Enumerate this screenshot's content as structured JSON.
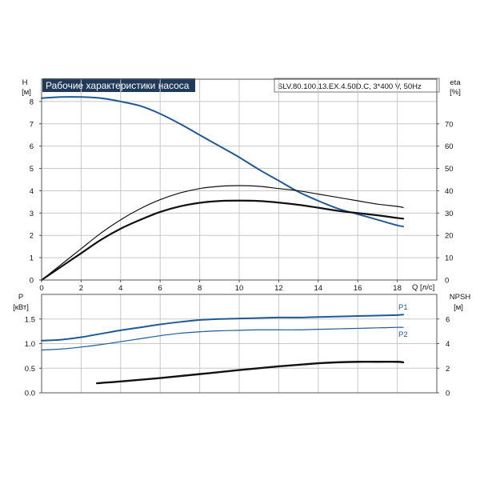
{
  "chart_data": {
    "type": "line",
    "title": "Рабочие характеристики насоса",
    "model": "SLV.80.100.13.EX.4.50D.C, 3*400 V, 50Hz",
    "colors": {
      "title_bg": "#1f3a5a",
      "blue": "#1f5a96",
      "black": "#111111",
      "grid": "#c8c8c8",
      "axis": "#555555"
    },
    "x_axis": {
      "label": "Q [л/с]",
      "range": [
        0,
        20
      ],
      "ticks": [
        0,
        2,
        4,
        6,
        8,
        10,
        12,
        14,
        16,
        18
      ]
    },
    "top_panel": {
      "left_axis": {
        "label": "H",
        "unit": "[м]",
        "range": [
          0,
          9
        ],
        "ticks": [
          0,
          1,
          2,
          3,
          4,
          5,
          6,
          7,
          8
        ]
      },
      "right_axis": {
        "label": "eta",
        "unit": "[%]",
        "range": [
          0,
          90
        ],
        "ticks": [
          10,
          20,
          30,
          40,
          50,
          60,
          70
        ]
      },
      "series": [
        {
          "axis": "left",
          "color": "blue",
          "width": 2,
          "x": [
            0,
            1,
            2,
            3,
            4,
            5,
            6,
            7,
            8,
            9,
            10,
            11,
            12,
            13,
            14,
            15,
            16,
            17,
            18,
            18.3
          ],
          "y": [
            8.15,
            8.2,
            8.2,
            8.15,
            8.0,
            7.8,
            7.45,
            7.0,
            6.5,
            6.0,
            5.5,
            4.95,
            4.45,
            3.95,
            3.55,
            3.2,
            2.95,
            2.7,
            2.45,
            2.4
          ]
        },
        {
          "axis": "right",
          "color": "black",
          "width": 1.2,
          "x": [
            0,
            1,
            2,
            3,
            4,
            5,
            6,
            7,
            8,
            9,
            10,
            11,
            12,
            13,
            14,
            15,
            16,
            17,
            18,
            18.3
          ],
          "y": [
            0,
            7,
            14,
            21,
            27,
            32,
            36,
            39,
            41,
            42,
            42.3,
            42,
            41,
            40,
            38.5,
            37,
            35.5,
            34,
            33,
            32.5
          ]
        },
        {
          "axis": "right",
          "color": "black",
          "width": 2.2,
          "x": [
            0,
            1,
            2,
            3,
            4,
            5,
            6,
            7,
            8,
            9,
            10,
            11,
            12,
            13,
            14,
            15,
            16,
            17,
            18,
            18.3
          ],
          "y": [
            0,
            6,
            12,
            18,
            23,
            27,
            30.5,
            33,
            34.6,
            35.4,
            35.6,
            35.4,
            34.7,
            33.7,
            32.4,
            31,
            30,
            29,
            27.8,
            27.5
          ]
        }
      ]
    },
    "bottom_panel": {
      "left_axis": {
        "label": "P",
        "unit": "[кВт]",
        "range": [
          0,
          2
        ],
        "ticks": [
          0.0,
          0.5,
          1.0,
          1.5
        ],
        "tick_labels": [
          "0.0",
          "0.5",
          "1.0",
          "1.5"
        ]
      },
      "right_axis": {
        "label": "NPSH",
        "unit": "[м]",
        "range": [
          0,
          8
        ],
        "ticks": [
          0,
          2,
          4,
          6
        ]
      },
      "series": [
        {
          "name": "P1",
          "axis": "left",
          "color": "blue",
          "width": 2,
          "x": [
            0,
            1,
            2,
            3,
            4,
            5,
            6,
            7,
            8,
            9,
            10,
            11,
            12,
            13,
            14,
            15,
            16,
            17,
            18,
            18.3
          ],
          "y": [
            1.06,
            1.08,
            1.13,
            1.2,
            1.27,
            1.33,
            1.39,
            1.44,
            1.48,
            1.5,
            1.51,
            1.52,
            1.53,
            1.53,
            1.54,
            1.55,
            1.56,
            1.57,
            1.58,
            1.59
          ]
        },
        {
          "name": "P2",
          "axis": "left",
          "color": "blue",
          "width": 1.2,
          "x": [
            0,
            1,
            2,
            3,
            4,
            5,
            6,
            7,
            8,
            9,
            10,
            11,
            12,
            13,
            14,
            15,
            16,
            17,
            18,
            18.3
          ],
          "y": [
            0.87,
            0.89,
            0.93,
            0.98,
            1.04,
            1.1,
            1.16,
            1.21,
            1.24,
            1.26,
            1.27,
            1.28,
            1.28,
            1.28,
            1.29,
            1.3,
            1.31,
            1.32,
            1.33,
            1.33
          ]
        },
        {
          "name": "NPSH",
          "axis": "right",
          "color": "black",
          "width": 2.4,
          "x": [
            2.8,
            4,
            6,
            8,
            10,
            12,
            14,
            15,
            16,
            17,
            18,
            18.3
          ],
          "y": [
            0.78,
            0.92,
            1.2,
            1.52,
            1.85,
            2.15,
            2.4,
            2.48,
            2.52,
            2.52,
            2.52,
            2.48
          ]
        }
      ]
    }
  }
}
